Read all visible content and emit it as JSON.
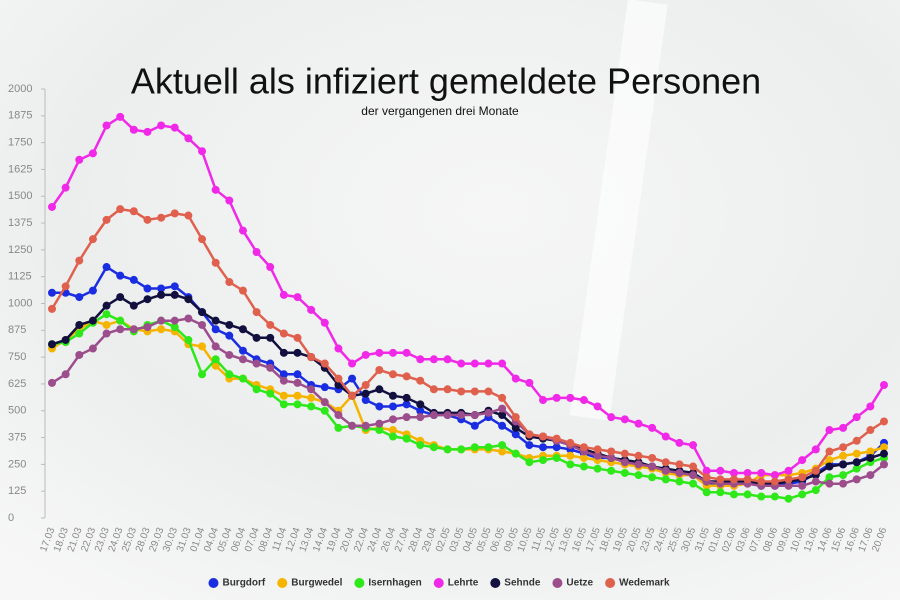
{
  "chart_data": {
    "type": "line",
    "title": "Aktuell als infiziert gemeldete Personen",
    "subtitle": "der vergangenen drei Monate",
    "categories": [
      "17.03",
      "18.03",
      "21.03",
      "22.03",
      "23.03",
      "24.03",
      "25.03",
      "28.03",
      "29.03",
      "30.03",
      "31.03",
      "01.04",
      "04.04",
      "05.04",
      "06.04",
      "07.04",
      "08.04",
      "11.04",
      "12.04",
      "13.04",
      "14.04",
      "19.04",
      "20.04",
      "22.04",
      "24.04",
      "26.04",
      "27.04",
      "28.04",
      "29.04",
      "02.05",
      "03.05",
      "04.05",
      "05.05",
      "06.05",
      "09.05",
      "10.05",
      "11.05",
      "12.05",
      "13.05",
      "16.05",
      "17.05",
      "18.05",
      "19.05",
      "20.05",
      "23.05",
      "24.05",
      "25.05",
      "30.05",
      "31.05",
      "01.06",
      "02.06",
      "03.06",
      "07.06",
      "08.06",
      "09.06",
      "10.06",
      "13.06",
      "14.06",
      "15.06",
      "16.06",
      "17.06",
      "20.06"
    ],
    "ylim": [
      0,
      2000
    ],
    "yticks": [
      0,
      125,
      250,
      375,
      500,
      625,
      750,
      875,
      1000,
      1125,
      1250,
      1375,
      1500,
      1625,
      1750,
      1875,
      2000
    ],
    "grid": false,
    "legend": "bottom",
    "series": [
      {
        "name": "Burgdorf",
        "color": "#1a2de0",
        "values": [
          1050,
          1050,
          1030,
          1060,
          1170,
          1130,
          1110,
          1070,
          1070,
          1080,
          1030,
          960,
          880,
          850,
          780,
          740,
          720,
          670,
          670,
          620,
          610,
          600,
          650,
          550,
          520,
          520,
          530,
          500,
          480,
          480,
          460,
          430,
          470,
          430,
          390,
          340,
          330,
          330,
          320,
          300,
          280,
          280,
          270,
          250,
          240,
          220,
          210,
          200,
          160,
          160,
          160,
          160,
          150,
          150,
          160,
          170,
          210,
          250,
          250,
          260,
          290,
          350
        ]
      },
      {
        "name": "Burgwedel",
        "color": "#f5b400",
        "values": [
          790,
          830,
          880,
          920,
          900,
          920,
          880,
          870,
          880,
          870,
          810,
          800,
          710,
          650,
          650,
          620,
          600,
          570,
          570,
          560,
          540,
          500,
          570,
          410,
          420,
          410,
          390,
          360,
          340,
          320,
          320,
          320,
          320,
          310,
          300,
          280,
          290,
          290,
          290,
          280,
          270,
          260,
          250,
          240,
          230,
          210,
          200,
          200,
          150,
          150,
          150,
          160,
          200,
          200,
          200,
          210,
          230,
          270,
          290,
          300,
          310,
          330
        ]
      },
      {
        "name": "Isernhagen",
        "color": "#2ee81a",
        "values": [
          810,
          820,
          860,
          910,
          950,
          920,
          870,
          900,
          920,
          890,
          830,
          670,
          740,
          670,
          650,
          600,
          580,
          530,
          530,
          520,
          500,
          420,
          430,
          420,
          410,
          380,
          370,
          340,
          330,
          320,
          320,
          330,
          330,
          340,
          300,
          260,
          270,
          280,
          250,
          240,
          230,
          220,
          210,
          200,
          190,
          180,
          170,
          160,
          120,
          120,
          110,
          110,
          100,
          100,
          90,
          110,
          130,
          190,
          200,
          230,
          260,
          280
        ]
      },
      {
        "name": "Lehrte",
        "color": "#f028e8",
        "values": [
          1450,
          1540,
          1670,
          1700,
          1830,
          1870,
          1810,
          1800,
          1830,
          1820,
          1770,
          1710,
          1530,
          1480,
          1340,
          1240,
          1170,
          1040,
          1030,
          970,
          910,
          790,
          720,
          760,
          770,
          770,
          770,
          740,
          740,
          740,
          720,
          720,
          720,
          720,
          650,
          630,
          550,
          560,
          560,
          550,
          520,
          470,
          460,
          440,
          420,
          380,
          350,
          340,
          220,
          220,
          210,
          210,
          210,
          200,
          220,
          270,
          320,
          410,
          420,
          470,
          520,
          620
        ]
      },
      {
        "name": "Sehnde",
        "color": "#12103e",
        "values": [
          810,
          830,
          900,
          920,
          990,
          1030,
          990,
          1020,
          1040,
          1040,
          1020,
          960,
          920,
          900,
          880,
          840,
          840,
          770,
          770,
          750,
          700,
          620,
          570,
          580,
          600,
          570,
          560,
          530,
          490,
          490,
          490,
          480,
          500,
          480,
          420,
          380,
          370,
          360,
          340,
          320,
          300,
          280,
          270,
          260,
          240,
          230,
          220,
          210,
          170,
          170,
          170,
          170,
          160,
          160,
          170,
          180,
          200,
          240,
          250,
          260,
          280,
          300
        ]
      },
      {
        "name": "Uetze",
        "color": "#9c4e8c",
        "values": [
          630,
          670,
          760,
          790,
          860,
          880,
          880,
          890,
          920,
          920,
          930,
          900,
          800,
          760,
          740,
          720,
          700,
          640,
          630,
          600,
          540,
          480,
          430,
          430,
          440,
          460,
          470,
          470,
          480,
          480,
          480,
          480,
          490,
          510,
          450,
          390,
          380,
          360,
          340,
          310,
          290,
          280,
          260,
          250,
          240,
          220,
          210,
          200,
          170,
          160,
          160,
          160,
          150,
          150,
          150,
          150,
          170,
          160,
          160,
          180,
          200,
          250
        ]
      },
      {
        "name": "Wedemark",
        "color": "#e0604e",
        "values": [
          975,
          1080,
          1200,
          1300,
          1390,
          1440,
          1430,
          1390,
          1400,
          1420,
          1410,
          1300,
          1190,
          1100,
          1060,
          960,
          900,
          860,
          840,
          750,
          720,
          650,
          570,
          620,
          690,
          670,
          660,
          640,
          600,
          600,
          590,
          590,
          590,
          560,
          470,
          390,
          380,
          370,
          350,
          330,
          320,
          310,
          300,
          290,
          280,
          260,
          250,
          240,
          190,
          180,
          180,
          180,
          170,
          170,
          180,
          190,
          220,
          310,
          330,
          360,
          410,
          450
        ]
      }
    ]
  }
}
